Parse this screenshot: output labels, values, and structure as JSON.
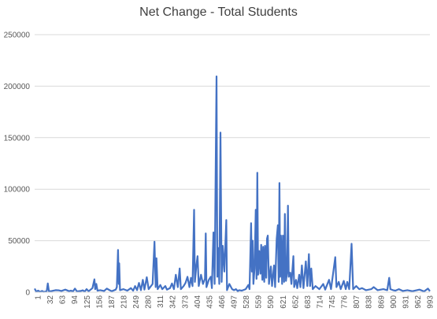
{
  "chart_data": {
    "type": "line",
    "title": "Net Change - Total Students",
    "xlabel": "",
    "ylabel": "",
    "ylim": [
      0,
      250000
    ],
    "y_ticks": [
      0,
      50000,
      100000,
      150000,
      200000,
      250000
    ],
    "y_tick_labels": [
      "0",
      "50000",
      "100000",
      "150000",
      "200000",
      "250000"
    ],
    "x_range": [
      1,
      1020
    ],
    "x_tick_labels": [
      "1",
      "32",
      "63",
      "94",
      "125",
      "156",
      "187",
      "218",
      "249",
      "280",
      "311",
      "342",
      "373",
      "404",
      "435",
      "466",
      "497",
      "528",
      "559",
      "590",
      "621",
      "652",
      "683",
      "714",
      "745",
      "776",
      "807",
      "838",
      "869",
      "900",
      "931",
      "962",
      "993"
    ],
    "grid": "horizontal",
    "legend": "none",
    "series": [
      {
        "color": "#4472c4",
        "points": [
          [
            1,
            3500
          ],
          [
            5,
            500
          ],
          [
            10,
            1500
          ],
          [
            15,
            400
          ],
          [
            20,
            1200
          ],
          [
            25,
            300
          ],
          [
            30,
            800
          ],
          [
            32,
            1000
          ],
          [
            35,
            8500
          ],
          [
            38,
            800
          ],
          [
            45,
            1200
          ],
          [
            55,
            2000
          ],
          [
            63,
            1800
          ],
          [
            70,
            1200
          ],
          [
            80,
            2500
          ],
          [
            90,
            1000
          ],
          [
            94,
            1500
          ],
          [
            100,
            900
          ],
          [
            105,
            3500
          ],
          [
            110,
            800
          ],
          [
            120,
            1200
          ],
          [
            125,
            1800
          ],
          [
            130,
            600
          ],
          [
            135,
            3000
          ],
          [
            140,
            900
          ],
          [
            150,
            4000
          ],
          [
            155,
            12500
          ],
          [
            157,
            3000
          ],
          [
            160,
            8000
          ],
          [
            163,
            1500
          ],
          [
            170,
            2000
          ],
          [
            180,
            1200
          ],
          [
            187,
            3500
          ],
          [
            195,
            1800
          ],
          [
            200,
            1000
          ],
          [
            210,
            2500
          ],
          [
            213,
            5000
          ],
          [
            216,
            41000
          ],
          [
            218,
            8000
          ],
          [
            219,
            28000
          ],
          [
            221,
            2000
          ],
          [
            230,
            3000
          ],
          [
            240,
            1500
          ],
          [
            249,
            4000
          ],
          [
            255,
            1500
          ],
          [
            260,
            6000
          ],
          [
            265,
            2000
          ],
          [
            270,
            9000
          ],
          [
            275,
            2000
          ],
          [
            280,
            12000
          ],
          [
            284,
            2500
          ],
          [
            290,
            14500
          ],
          [
            295,
            3000
          ],
          [
            305,
            8000
          ],
          [
            310,
            49000
          ],
          [
            313,
            5000
          ],
          [
            315,
            33000
          ],
          [
            318,
            3000
          ],
          [
            325,
            7000
          ],
          [
            330,
            3000
          ],
          [
            338,
            6000
          ],
          [
            342,
            2500
          ],
          [
            350,
            4000
          ],
          [
            355,
            8500
          ],
          [
            360,
            3000
          ],
          [
            365,
            17000
          ],
          [
            370,
            5000
          ],
          [
            375,
            23000
          ],
          [
            378,
            3000
          ],
          [
            385,
            6000
          ],
          [
            390,
            9000
          ],
          [
            395,
            15000
          ],
          [
            400,
            5000
          ],
          [
            404,
            14000
          ],
          [
            408,
            6000
          ],
          [
            412,
            80000
          ],
          [
            414,
            10000
          ],
          [
            418,
            26000
          ],
          [
            421,
            35000
          ],
          [
            424,
            6000
          ],
          [
            430,
            17000
          ],
          [
            435,
            8000
          ],
          [
            440,
            13000
          ],
          [
            442,
            57000
          ],
          [
            444,
            5000
          ],
          [
            450,
            12000
          ],
          [
            455,
            15000
          ],
          [
            458,
            4000
          ],
          [
            462,
            58000
          ],
          [
            465,
            8000
          ],
          [
            470,
            209500
          ],
          [
            472,
            15000
          ],
          [
            474,
            43000
          ],
          [
            477,
            8000
          ],
          [
            480,
            155000
          ],
          [
            483,
            10000
          ],
          [
            486,
            45000
          ],
          [
            490,
            20000
          ],
          [
            495,
            70000
          ],
          [
            497,
            2000
          ],
          [
            503,
            8000
          ],
          [
            510,
            3000
          ],
          [
            515,
            2000
          ],
          [
            520,
            3000
          ],
          [
            525,
            1000
          ],
          [
            528,
            2000
          ],
          [
            535,
            1500
          ],
          [
            545,
            3000
          ],
          [
            552,
            7000
          ],
          [
            555,
            3000
          ],
          [
            559,
            67000
          ],
          [
            561,
            20000
          ],
          [
            563,
            50000
          ],
          [
            565,
            8000
          ],
          [
            568,
            23000
          ],
          [
            571,
            80000
          ],
          [
            573,
            13000
          ],
          [
            575,
            116000
          ],
          [
            577,
            17000
          ],
          [
            580,
            40000
          ],
          [
            583,
            18000
          ],
          [
            585,
            46000
          ],
          [
            588,
            12000
          ],
          [
            590,
            44000
          ],
          [
            593,
            10000
          ],
          [
            595,
            45000
          ],
          [
            598,
            14000
          ],
          [
            600,
            52000
          ],
          [
            602,
            55000
          ],
          [
            605,
            8000
          ],
          [
            610,
            25000
          ],
          [
            613,
            6000
          ],
          [
            618,
            26000
          ],
          [
            621,
            5000
          ],
          [
            625,
            52000
          ],
          [
            628,
            65000
          ],
          [
            630,
            10000
          ],
          [
            632,
            106000
          ],
          [
            634,
            15000
          ],
          [
            636,
            55000
          ],
          [
            639,
            8000
          ],
          [
            641,
            55000
          ],
          [
            644,
            10000
          ],
          [
            646,
            76000
          ],
          [
            649,
            11000
          ],
          [
            652,
            20000
          ],
          [
            654,
            84000
          ],
          [
            656,
            15000
          ],
          [
            660,
            19000
          ],
          [
            663,
            8000
          ],
          [
            668,
            35000
          ],
          [
            670,
            5000
          ],
          [
            675,
            12000
          ],
          [
            678,
            4000
          ],
          [
            683,
            17000
          ],
          [
            686,
            5000
          ],
          [
            690,
            26000
          ],
          [
            694,
            4000
          ],
          [
            700,
            30000
          ],
          [
            704,
            6000
          ],
          [
            708,
            37000
          ],
          [
            711,
            6000
          ],
          [
            714,
            23000
          ],
          [
            718,
            3000
          ],
          [
            725,
            6000
          ],
          [
            735,
            3000
          ],
          [
            745,
            8000
          ],
          [
            750,
            2500
          ],
          [
            760,
            12000
          ],
          [
            765,
            3000
          ],
          [
            776,
            34000
          ],
          [
            779,
            5000
          ],
          [
            785,
            10000
          ],
          [
            790,
            3000
          ],
          [
            798,
            11000
          ],
          [
            803,
            3000
          ],
          [
            807,
            10000
          ],
          [
            812,
            3000
          ],
          [
            818,
            47000
          ],
          [
            822,
            3000
          ],
          [
            830,
            6000
          ],
          [
            838,
            3000
          ],
          [
            845,
            4000
          ],
          [
            855,
            2000
          ],
          [
            869,
            3000
          ],
          [
            875,
            5000
          ],
          [
            885,
            2000
          ],
          [
            900,
            3000
          ],
          [
            910,
            2000
          ],
          [
            915,
            14000
          ],
          [
            918,
            3000
          ],
          [
            925,
            2000
          ],
          [
            931,
            1500
          ],
          [
            940,
            3000
          ],
          [
            950,
            1200
          ],
          [
            962,
            2000
          ],
          [
            975,
            1000
          ],
          [
            993,
            2500
          ],
          [
            1005,
            800
          ],
          [
            1015,
            3500
          ],
          [
            1020,
            1000
          ]
        ]
      }
    ]
  }
}
